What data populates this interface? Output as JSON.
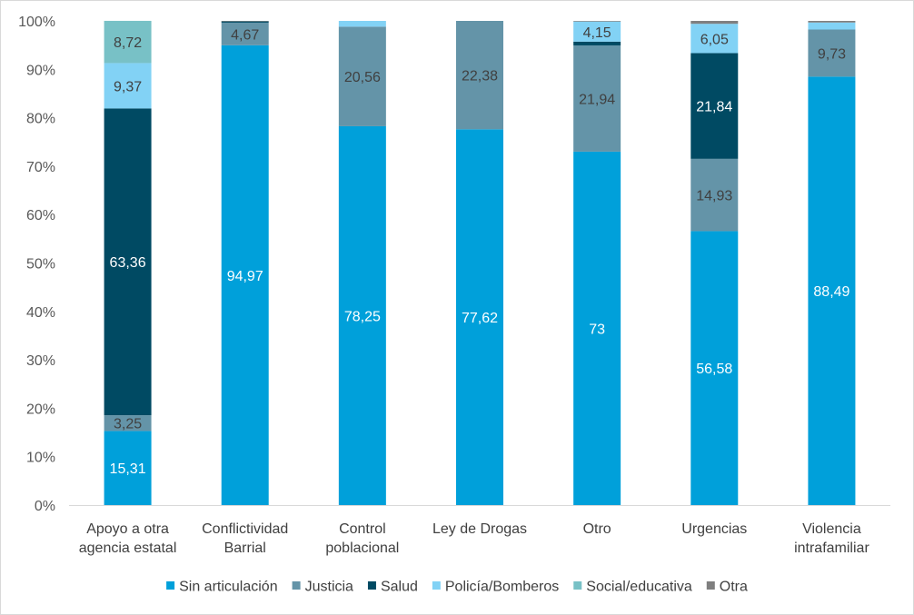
{
  "chart_data": {
    "type": "bar",
    "stacked": true,
    "normalized": true,
    "categories": [
      [
        "Apoyo a otra",
        "agencia estatal"
      ],
      [
        "Conflictividad",
        "Barrial"
      ],
      [
        "Control",
        "poblacional"
      ],
      [
        "Ley de Drogas"
      ],
      [
        "Otro"
      ],
      [
        "Urgencias"
      ],
      [
        "Violencia",
        "intrafamiliar"
      ]
    ],
    "yticks": [
      "0%",
      "10%",
      "20%",
      "30%",
      "40%",
      "50%",
      "60%",
      "70%",
      "80%",
      "90%",
      "100%"
    ],
    "ylim": [
      0,
      100
    ],
    "legend_position": "bottom",
    "series": [
      {
        "name": "Sin articulación",
        "color": "#00a0da",
        "label_color": "#ffffff",
        "values": [
          15.31,
          94.97,
          78.25,
          77.62,
          73,
          56.58,
          88.49
        ],
        "labels": [
          "15,31",
          "94,97",
          "78,25",
          "77,62",
          "73",
          "56,58",
          "88,49"
        ]
      },
      {
        "name": "Justicia",
        "color": "#6494a8",
        "label_color": "#404040",
        "values": [
          3.25,
          4.67,
          20.56,
          22.38,
          21.94,
          14.93,
          9.73
        ],
        "labels": [
          "3,25",
          "4,67",
          "20,56",
          "22,38",
          "21,94",
          "14,93",
          "9,73"
        ]
      },
      {
        "name": "Salud",
        "color": "#004a63",
        "label_color": "#ffffff",
        "values": [
          63.36,
          0.25,
          0,
          0,
          0.78,
          21.84,
          0
        ],
        "labels": [
          "63,36",
          "",
          "",
          "",
          "",
          "21,84",
          ""
        ]
      },
      {
        "name": "Policía/Bomberos",
        "color": "#82d2f5",
        "label_color": "#404040",
        "values": [
          9.37,
          0,
          1.19,
          0,
          4.15,
          6.05,
          1.45
        ],
        "labels": [
          "9,37",
          "",
          "",
          "",
          "4,15",
          "6,05",
          ""
        ]
      },
      {
        "name": "Social/educativa",
        "color": "#78c1c6",
        "label_color": "#404040",
        "values": [
          8.72,
          0,
          0,
          0,
          0,
          0,
          0
        ],
        "labels": [
          "8,72",
          "",
          "",
          "",
          "",
          "",
          ""
        ]
      },
      {
        "name": "Otra",
        "color": "#7f7f7f",
        "label_color": "#404040",
        "values": [
          0,
          0.11,
          0,
          0,
          0.13,
          0.6,
          0.33
        ],
        "labels": [
          "",
          "",
          "",
          "",
          "",
          "",
          ""
        ]
      }
    ]
  }
}
